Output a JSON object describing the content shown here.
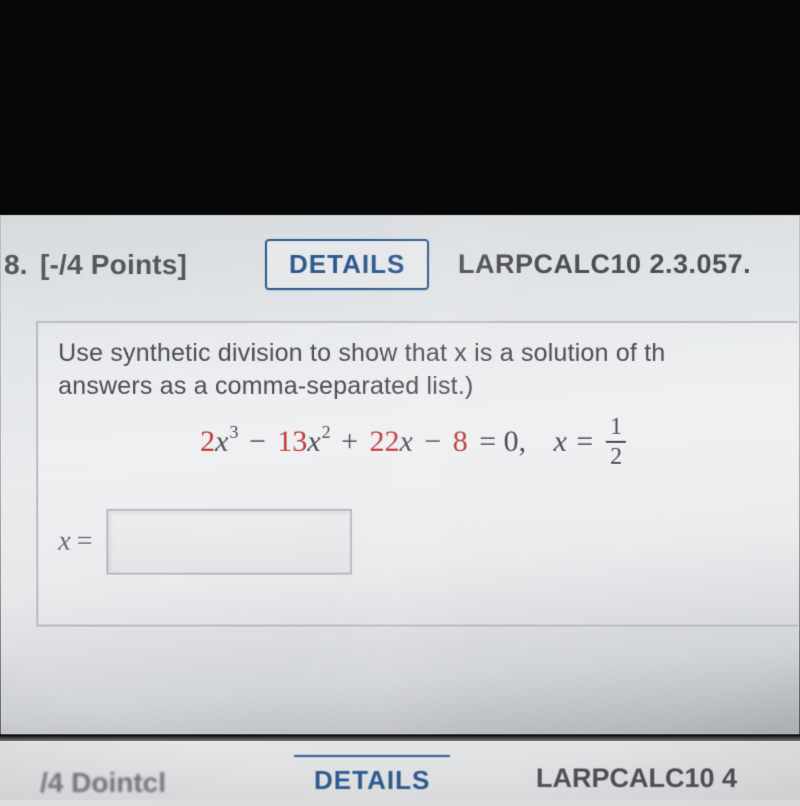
{
  "header": {
    "number": "8.",
    "points": "[-/4 Points]",
    "details_label": "DETAILS",
    "source": "LARPCALC10 2.3.057."
  },
  "question": {
    "line1": "Use synthetic division to show that x is a solution of th",
    "line2": "answers as a comma-separated list.)",
    "equation": {
      "coeff_a": "2",
      "var_a": "x",
      "exp_a": "3",
      "op1": "−",
      "coeff_b": "13",
      "var_b": "x",
      "exp_b": "2",
      "op2": "+",
      "coeff_c": "22",
      "var_c": "x",
      "op3": "−",
      "coeff_d": "8",
      "eq_zero": "= 0,",
      "root_label": "x =",
      "root_num": "1",
      "root_den": "2",
      "colors": {
        "coeff_color": "#c43a3a",
        "text_color": "#4c4f52"
      }
    },
    "answer_label_var": "x",
    "answer_label_eq": "="
  },
  "footer": {
    "points_partial": "/4 Dointcl",
    "details_label": "DETAILS",
    "source_partial": "LARPCALC10 4"
  }
}
